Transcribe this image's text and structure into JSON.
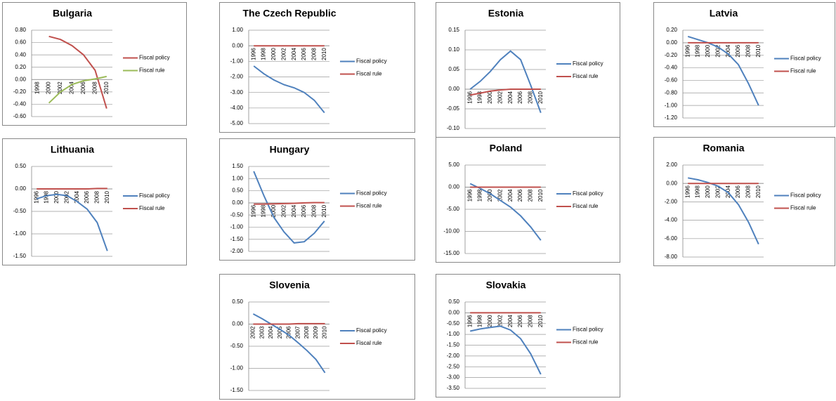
{
  "chart_data": [
    {
      "type": "line",
      "title": "Bulgaria",
      "categories": [
        "1998",
        "2000",
        "2002",
        "2004",
        "2006",
        "2008",
        "2010"
      ],
      "series": [
        {
          "name": "Fiscal policy",
          "color": "#c0504d",
          "values": [
            null,
            0.7,
            0.65,
            0.55,
            0.4,
            0.15,
            -0.47
          ]
        },
        {
          "name": "Fiscal rule",
          "color": "#9bbb59",
          "values": [
            null,
            -0.38,
            -0.2,
            -0.08,
            -0.02,
            0.01,
            0.05
          ]
        }
      ],
      "ylim": [
        -0.6,
        0.8
      ],
      "yticks": [
        {
          "value": -0.6,
          "label": "-0.60"
        },
        {
          "value": -0.4,
          "label": "-0.40"
        },
        {
          "value": -0.2,
          "label": "-0.20"
        },
        {
          "value": 0,
          "label": "0.00"
        },
        {
          "value": 0.2,
          "label": "0.20"
        },
        {
          "value": 0.4,
          "label": "0.40"
        },
        {
          "value": 0.6,
          "label": "0.60"
        },
        {
          "value": 0.8,
          "label": "0.80"
        }
      ],
      "grid": true
    },
    {
      "type": "line",
      "title": "The Czech Republic",
      "categories": [
        "1996",
        "1998",
        "2000",
        "2002",
        "2004",
        "2006",
        "2008",
        "2010"
      ],
      "series": [
        {
          "name": "Fiscal policy",
          "color": "#4f81bd",
          "values": [
            -1.3,
            -1.8,
            -2.2,
            -2.5,
            -2.7,
            -3.0,
            -3.5,
            -4.3
          ]
        },
        {
          "name": "Fiscal rule",
          "color": "#c0504d",
          "values": [
            0,
            0,
            0,
            0,
            0,
            0,
            0,
            0
          ]
        }
      ],
      "ylim": [
        -5,
        1
      ],
      "yticks": [
        {
          "value": -5,
          "label": "-5.00"
        },
        {
          "value": -4,
          "label": "-4.00"
        },
        {
          "value": -3,
          "label": "-3.00"
        },
        {
          "value": -2,
          "label": "-2.00"
        },
        {
          "value": -1,
          "label": "-1.00"
        },
        {
          "value": 0,
          "label": "0.00"
        },
        {
          "value": 1,
          "label": "1.00"
        }
      ],
      "grid": true
    },
    {
      "type": "line",
      "title": "Estonia",
      "categories": [
        "1996",
        "1998",
        "2000",
        "2002",
        "2004",
        "2006",
        "2008",
        "2010"
      ],
      "series": [
        {
          "name": "Fiscal policy",
          "color": "#4f81bd",
          "values": [
            0.0,
            0.02,
            0.045,
            0.075,
            0.097,
            0.075,
            0.01,
            -0.06
          ]
        },
        {
          "name": "Fiscal rule",
          "color": "#c0504d",
          "values": [
            -0.015,
            -0.01,
            -0.005,
            -0.002,
            0,
            0,
            0,
            0
          ]
        }
      ],
      "ylim": [
        -0.1,
        0.15
      ],
      "yticks": [
        {
          "value": -0.1,
          "label": "-0.10"
        },
        {
          "value": -0.05,
          "label": "-0.05"
        },
        {
          "value": 0,
          "label": "0.00"
        },
        {
          "value": 0.05,
          "label": "0.05"
        },
        {
          "value": 0.1,
          "label": "0.10"
        },
        {
          "value": 0.15,
          "label": "0.15"
        }
      ],
      "grid": true
    },
    {
      "type": "line",
      "title": "Latvia",
      "categories": [
        "1996",
        "1998",
        "2000",
        "2002",
        "2004",
        "2006",
        "2008",
        "2010"
      ],
      "series": [
        {
          "name": "Fiscal policy",
          "color": "#4f81bd",
          "values": [
            0.1,
            0.05,
            0.0,
            -0.07,
            -0.18,
            -0.35,
            -0.65,
            -1.0
          ]
        },
        {
          "name": "Fiscal rule",
          "color": "#c0504d",
          "values": [
            0,
            0,
            0,
            0,
            0,
            0,
            0,
            0
          ]
        }
      ],
      "ylim": [
        -1.2,
        0.2
      ],
      "yticks": [
        {
          "value": -1.2,
          "label": "-1.20"
        },
        {
          "value": -1.0,
          "label": "-1.00"
        },
        {
          "value": -0.8,
          "label": "-0.80"
        },
        {
          "value": -0.6,
          "label": "-0.60"
        },
        {
          "value": -0.4,
          "label": "-0.40"
        },
        {
          "value": -0.2,
          "label": "-0.20"
        },
        {
          "value": 0,
          "label": "0.00"
        },
        {
          "value": 0.2,
          "label": "0.20"
        }
      ],
      "grid": true
    },
    {
      "type": "line",
      "title": "Lithuania",
      "categories": [
        "1996",
        "1998",
        "2000",
        "2002",
        "2004",
        "2006",
        "2008",
        "2010"
      ],
      "series": [
        {
          "name": "Fiscal policy",
          "color": "#4f81bd",
          "values": [
            -0.22,
            -0.15,
            -0.12,
            -0.15,
            -0.28,
            -0.45,
            -0.75,
            -1.38
          ]
        },
        {
          "name": "Fiscal rule",
          "color": "#c0504d",
          "values": [
            0,
            0,
            0,
            0,
            0,
            0,
            0.01,
            0.01
          ]
        }
      ],
      "ylim": [
        -1.5,
        0.5
      ],
      "yticks": [
        {
          "value": -1.5,
          "label": "-1.50"
        },
        {
          "value": -1.0,
          "label": "-1.00"
        },
        {
          "value": -0.5,
          "label": "-0.50"
        },
        {
          "value": 0,
          "label": "0.00"
        },
        {
          "value": 0.5,
          "label": "0.50"
        }
      ],
      "grid": true
    },
    {
      "type": "line",
      "title": "Hungary",
      "categories": [
        "1996",
        "1998",
        "2000",
        "2002",
        "2004",
        "2006",
        "2008",
        "2010"
      ],
      "series": [
        {
          "name": "Fiscal policy",
          "color": "#4f81bd",
          "values": [
            1.3,
            0.3,
            -0.6,
            -1.2,
            -1.65,
            -1.6,
            -1.25,
            -0.75
          ]
        },
        {
          "name": "Fiscal rule",
          "color": "#c0504d",
          "values": [
            -0.05,
            -0.05,
            -0.04,
            -0.03,
            -0.02,
            0,
            0.01,
            0.01
          ]
        }
      ],
      "ylim": [
        -2,
        1.5
      ],
      "yticks": [
        {
          "value": -2,
          "label": "-2.00"
        },
        {
          "value": -1.5,
          "label": "-1.50"
        },
        {
          "value": -1,
          "label": "-1.00"
        },
        {
          "value": -0.5,
          "label": "-0.50"
        },
        {
          "value": 0,
          "label": "0.00"
        },
        {
          "value": 0.5,
          "label": "0.50"
        },
        {
          "value": 1,
          "label": "1.00"
        },
        {
          "value": 1.5,
          "label": "1.50"
        }
      ],
      "grid": true
    },
    {
      "type": "line",
      "title": "Poland",
      "categories": [
        "1996",
        "1998",
        "2000",
        "2002",
        "2004",
        "2006",
        "2008",
        "2010"
      ],
      "series": [
        {
          "name": "Fiscal policy",
          "color": "#4f81bd",
          "values": [
            0.8,
            -0.3,
            -1.5,
            -3.0,
            -4.5,
            -6.5,
            -9.0,
            -12.0
          ]
        },
        {
          "name": "Fiscal rule",
          "color": "#c0504d",
          "values": [
            0,
            0,
            0,
            0,
            0,
            0,
            0,
            0
          ]
        }
      ],
      "ylim": [
        -15,
        5
      ],
      "yticks": [
        {
          "value": -15,
          "label": "-15.00"
        },
        {
          "value": -10,
          "label": "-10.00"
        },
        {
          "value": -5,
          "label": "-5.00"
        },
        {
          "value": 0,
          "label": "0.00"
        },
        {
          "value": 5,
          "label": "5.00"
        }
      ],
      "grid": true
    },
    {
      "type": "line",
      "title": "Romania",
      "categories": [
        "1996",
        "1998",
        "2000",
        "2002",
        "2004",
        "2006",
        "2008",
        "2010"
      ],
      "series": [
        {
          "name": "Fiscal policy",
          "color": "#4f81bd",
          "values": [
            0.6,
            0.4,
            0.1,
            -0.3,
            -1.0,
            -2.3,
            -4.2,
            -6.6
          ]
        },
        {
          "name": "Fiscal rule",
          "color": "#c0504d",
          "values": [
            0,
            0,
            0,
            0,
            0,
            0,
            0,
            0
          ]
        }
      ],
      "ylim": [
        -8,
        2
      ],
      "yticks": [
        {
          "value": -8,
          "label": "-8.00"
        },
        {
          "value": -6,
          "label": "-6.00"
        },
        {
          "value": -4,
          "label": "-4.00"
        },
        {
          "value": -2,
          "label": "-2.00"
        },
        {
          "value": 0,
          "label": "0.00"
        },
        {
          "value": 2,
          "label": "2.00"
        }
      ],
      "grid": true
    },
    {
      "type": "line",
      "title": "Slovenia",
      "categories": [
        "2002",
        "2003",
        "2004",
        "2005",
        "2006",
        "2007",
        "2008",
        "2009",
        "2010"
      ],
      "series": [
        {
          "name": "Fiscal policy",
          "color": "#4f81bd",
          "values": [
            0.23,
            0.12,
            0.0,
            -0.12,
            -0.25,
            -0.42,
            -0.6,
            -0.8,
            -1.1
          ]
        },
        {
          "name": "Fiscal rule",
          "color": "#c0504d",
          "values": [
            0,
            0,
            0,
            0,
            0,
            0.01,
            0.01,
            0.01,
            0.01
          ]
        }
      ],
      "ylim": [
        -1.5,
        0.5
      ],
      "yticks": [
        {
          "value": -1.5,
          "label": "-1.50"
        },
        {
          "value": -1.0,
          "label": "-1.00"
        },
        {
          "value": -0.5,
          "label": "-0.50"
        },
        {
          "value": 0,
          "label": "0.00"
        },
        {
          "value": 0.5,
          "label": "0.50"
        }
      ],
      "grid": true
    },
    {
      "type": "line",
      "title": "Slovakia",
      "categories": [
        "1996",
        "1998",
        "2000",
        "2002",
        "2004",
        "2006",
        "2008",
        "2010"
      ],
      "series": [
        {
          "name": "Fiscal policy",
          "color": "#4f81bd",
          "values": [
            -0.85,
            -0.75,
            -0.68,
            -0.62,
            -0.8,
            -1.2,
            -1.9,
            -2.85
          ]
        },
        {
          "name": "Fiscal rule",
          "color": "#c0504d",
          "values": [
            0,
            0,
            0,
            0,
            0,
            0,
            0,
            0
          ]
        }
      ],
      "ylim": [
        -3.5,
        0.5
      ],
      "yticks": [
        {
          "value": -3.5,
          "label": "-3.50"
        },
        {
          "value": -3,
          "label": "-3.00"
        },
        {
          "value": -2.5,
          "label": "-2.50"
        },
        {
          "value": -2,
          "label": "-2.00"
        },
        {
          "value": -1.5,
          "label": "-1.50"
        },
        {
          "value": -1,
          "label": "-1.00"
        },
        {
          "value": -0.5,
          "label": "-0.50"
        },
        {
          "value": 0,
          "label": "0.00"
        },
        {
          "value": 0.5,
          "label": "0.50"
        }
      ],
      "grid": true
    }
  ]
}
